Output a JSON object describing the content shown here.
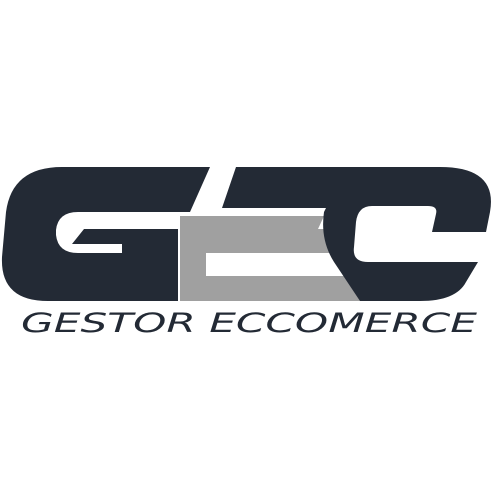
{
  "brand": {
    "monogram": "GEC",
    "tagline": "GESTOR ECCOMERCE"
  },
  "colors": {
    "background": "#ffffff",
    "dark": "#232a35",
    "gray": "#a0a0a0"
  }
}
